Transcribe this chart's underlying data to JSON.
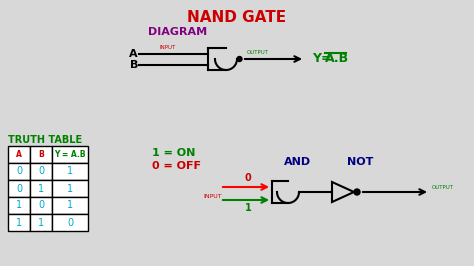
{
  "title": "NAND GATE",
  "title_color": "#cc0000",
  "diagram_label": "DIAGRAM",
  "diagram_label_color": "#800080",
  "bg_color": "#d8d8d8",
  "truth_table_label": "TRUTH TABLE",
  "truth_table_color": "#008000",
  "legend_1on": "1 = ON",
  "legend_0off": "0 = OFF",
  "legend_color": "#008000",
  "legend_0_color": "#cc0000",
  "output_eq_color": "#008000",
  "and_label": "AND",
  "not_label": "NOT",
  "gate_label_color": "#000080",
  "input_label": "INPUT",
  "input_label_color": "#cc0000",
  "output_label": "OUTPUT",
  "output_label_color": "#008000",
  "table_header_colors": [
    "#cc0000",
    "#cc0000",
    "#008000"
  ],
  "table_data": [
    [
      0,
      0,
      1
    ],
    [
      0,
      1,
      1
    ],
    [
      1,
      0,
      1
    ],
    [
      1,
      1,
      0
    ]
  ],
  "table_data_color": "#00aacc",
  "input_bottom_label": "INPUT",
  "input_bottom_color": "#cc0000",
  "top_input_0": "0",
  "top_input_0_color": "#cc0000",
  "bottom_input_1": "1",
  "bottom_input_1_color": "#008000"
}
